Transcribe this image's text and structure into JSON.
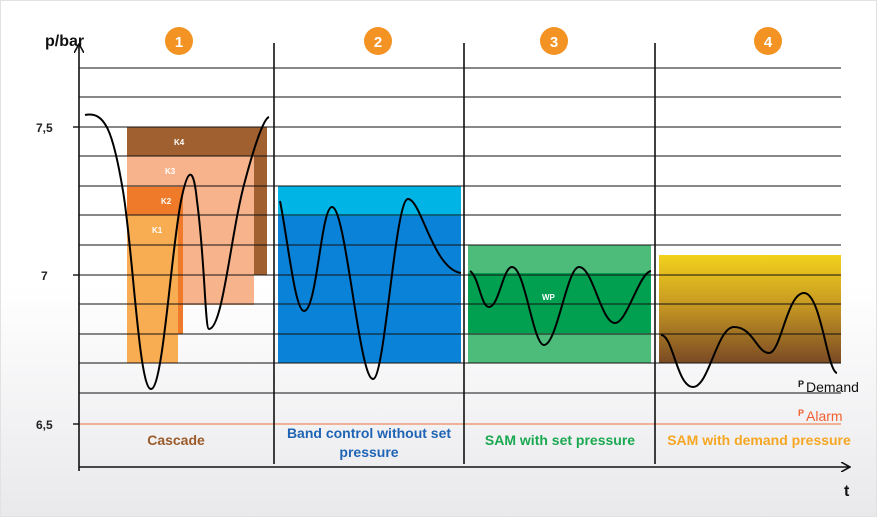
{
  "axes": {
    "y_label": "p/bar",
    "x_label": "t",
    "y_ticks": [
      "7,5",
      "7",
      "6,5"
    ]
  },
  "badges": [
    "1",
    "2",
    "3",
    "4"
  ],
  "cascade": {
    "k_labels": [
      "K4",
      "K3",
      "K2",
      "K1"
    ]
  },
  "sam_set": {
    "inner_label": "WP"
  },
  "captions": {
    "cascade": "Cascade",
    "band_line1": "Band control without set",
    "band_line2": "pressure",
    "sam_set": "SAM with set pressure",
    "sam_demand": "SAM with demand pressure"
  },
  "legend": {
    "demand_prefix": "P",
    "demand": "Demand",
    "alarm_prefix": "P",
    "alarm": "Alarm"
  },
  "colors": {
    "badge": "#f39323",
    "k4": "#a0602f",
    "k3": "#f7b48c",
    "k2": "#ef7b2a",
    "k1": "#f9ad52",
    "band_light": "#00b4e6",
    "band_dark": "#0a82d8",
    "sam_light": "#4dbb7a",
    "sam_dark": "#00a050",
    "alarm_line": "#f08a60",
    "cascade_caption": "#9a5a2a",
    "band_caption": "#1f64b4",
    "sam_caption": "#1aa850",
    "demand_caption": "#f5a623",
    "alarm_text": "#f06030"
  }
}
